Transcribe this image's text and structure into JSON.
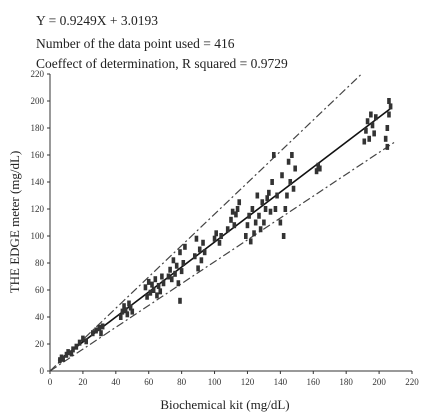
{
  "chart_data": {
    "type": "scatter",
    "annotations": [
      "Y = 0.9249X + 3.0193",
      "Number of the data point used = 416",
      "Coeffect of determination, R squared = 0.9729"
    ],
    "xlabel": "Biochemical kit (mg/dL)",
    "ylabel": "THE EDGE meter (mg/dL)",
    "xlim": [
      0,
      220
    ],
    "ylim": [
      0,
      220
    ],
    "xticks": [
      "0",
      "20",
      "40",
      "60",
      "80",
      "100",
      "120",
      "140",
      "160",
      "180",
      "200",
      "220"
    ],
    "yticks": [
      "0",
      "20",
      "40",
      "60",
      "80",
      "100",
      "120",
      "140",
      "160",
      "180",
      "200",
      "220"
    ],
    "grid": false,
    "legend": "none",
    "regression": {
      "slope": 0.9249,
      "intercept": 3.0193
    },
    "bounds": [
      {
        "name": "",
        "x": [
          0,
          210
        ],
        "y": [
          0,
          244
        ]
      },
      {
        "name": "",
        "x": [
          0,
          210
        ],
        "y": [
          0,
          170
        ]
      }
    ],
    "series": [
      {
        "name": "",
        "points": [
          [
            6,
            8
          ],
          [
            7,
            10
          ],
          [
            8,
            9
          ],
          [
            10,
            12
          ],
          [
            11,
            14
          ],
          [
            13,
            13
          ],
          [
            14,
            16
          ],
          [
            16,
            18
          ],
          [
            18,
            21
          ],
          [
            20,
            24
          ],
          [
            22,
            22
          ],
          [
            26,
            28
          ],
          [
            28,
            30
          ],
          [
            30,
            32
          ],
          [
            31,
            28
          ],
          [
            32,
            33
          ],
          [
            43,
            40
          ],
          [
            44,
            44
          ],
          [
            45,
            48
          ],
          [
            46,
            45
          ],
          [
            47,
            42
          ],
          [
            48,
            50
          ],
          [
            49,
            47
          ],
          [
            50,
            44
          ],
          [
            58,
            62
          ],
          [
            59,
            55
          ],
          [
            60,
            66
          ],
          [
            61,
            58
          ],
          [
            62,
            64
          ],
          [
            63,
            60
          ],
          [
            64,
            68
          ],
          [
            65,
            56
          ],
          [
            66,
            63
          ],
          [
            67,
            59
          ],
          [
            68,
            70
          ],
          [
            69,
            65
          ],
          [
            72,
            70
          ],
          [
            73,
            75
          ],
          [
            74,
            68
          ],
          [
            75,
            82
          ],
          [
            76,
            72
          ],
          [
            77,
            78
          ],
          [
            78,
            65
          ],
          [
            79,
            88
          ],
          [
            80,
            74
          ],
          [
            81,
            80
          ],
          [
            79,
            52
          ],
          [
            82,
            92
          ],
          [
            88,
            85
          ],
          [
            89,
            98
          ],
          [
            90,
            76
          ],
          [
            91,
            90
          ],
          [
            92,
            82
          ],
          [
            93,
            95
          ],
          [
            94,
            88
          ],
          [
            100,
            98
          ],
          [
            101,
            102
          ],
          [
            103,
            95
          ],
          [
            104,
            100
          ],
          [
            108,
            105
          ],
          [
            110,
            112
          ],
          [
            111,
            118
          ],
          [
            112,
            108
          ],
          [
            113,
            116
          ],
          [
            114,
            120
          ],
          [
            115,
            125
          ],
          [
            119,
            100
          ],
          [
            120,
            108
          ],
          [
            121,
            115
          ],
          [
            122,
            96
          ],
          [
            123,
            120
          ],
          [
            124,
            102
          ],
          [
            125,
            110
          ],
          [
            126,
            130
          ],
          [
            127,
            115
          ],
          [
            128,
            105
          ],
          [
            129,
            125
          ],
          [
            130,
            110
          ],
          [
            131,
            120
          ],
          [
            132,
            128
          ],
          [
            133,
            132
          ],
          [
            134,
            118
          ],
          [
            135,
            140
          ],
          [
            136,
            160
          ],
          [
            137,
            120
          ],
          [
            138,
            130
          ],
          [
            140,
            110
          ],
          [
            141,
            145
          ],
          [
            142,
            100
          ],
          [
            143,
            120
          ],
          [
            144,
            130
          ],
          [
            145,
            155
          ],
          [
            146,
            140
          ],
          [
            147,
            160
          ],
          [
            148,
            135
          ],
          [
            149,
            150
          ],
          [
            162,
            148
          ],
          [
            163,
            152
          ],
          [
            164,
            150
          ],
          [
            191,
            170
          ],
          [
            192,
            178
          ],
          [
            193,
            185
          ],
          [
            194,
            172
          ],
          [
            195,
            190
          ],
          [
            196,
            182
          ],
          [
            197,
            176
          ],
          [
            198,
            188
          ],
          [
            204,
            172
          ],
          [
            205,
            180
          ],
          [
            206,
            190
          ],
          [
            207,
            196
          ],
          [
            205,
            166
          ],
          [
            206,
            200
          ]
        ]
      }
    ]
  }
}
